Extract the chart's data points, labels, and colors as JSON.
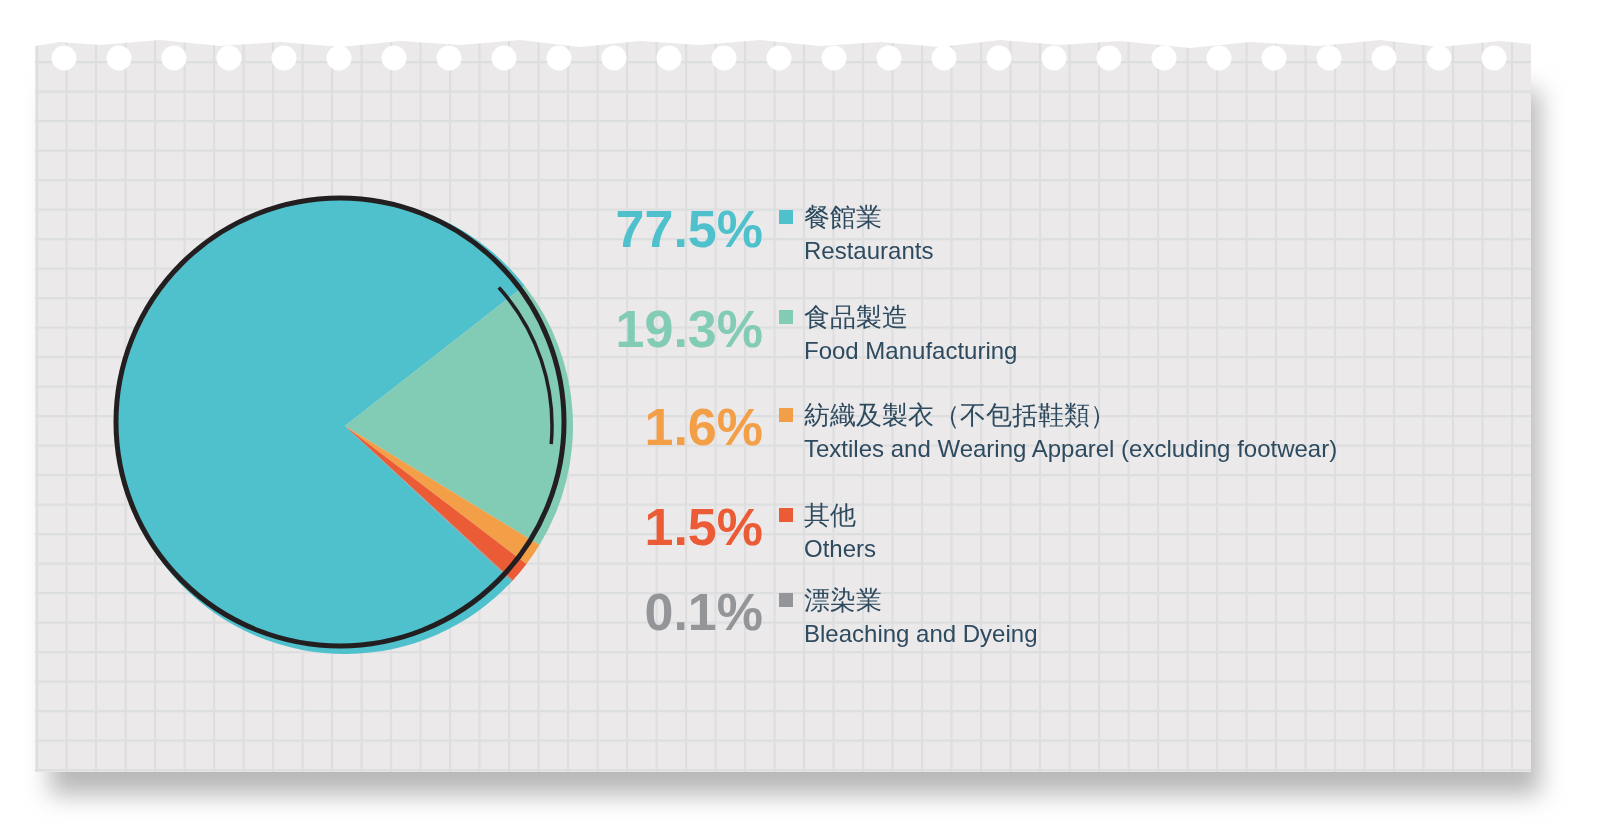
{
  "chart_data": {
    "type": "pie",
    "categories": [
      "餐館業\nRestaurants",
      "食品製造\nFood Manufacturing",
      "紡織及製衣（不包括鞋類）\nTextiles and Wearing Apparel (excluding footwear)",
      "其他\nOthers",
      "漂染業\nBleaching and Dyeing"
    ],
    "values": [
      77.5,
      19.3,
      1.6,
      1.5,
      0.1
    ],
    "colors": [
      "#4fc1cc",
      "#82cbb5",
      "#f39f47",
      "#ea5b36",
      "#939598"
    ],
    "value_labels": [
      "77.5%",
      "19.3%",
      "1.6%",
      "1.5%",
      "0.1%"
    ],
    "legend": "right"
  }
}
